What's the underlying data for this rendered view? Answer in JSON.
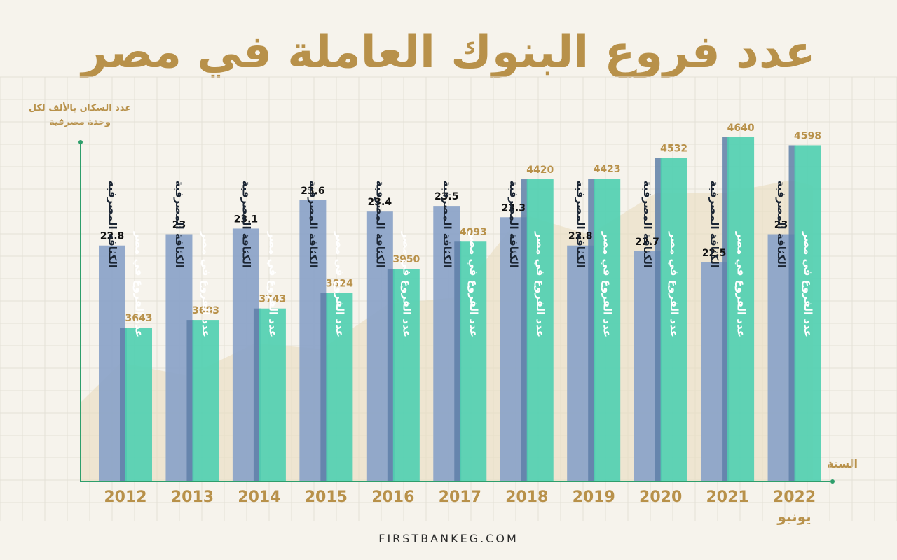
{
  "title": "عدد فروع البنوك العاملة في مصر",
  "footer": "FIRSTBANKEG.COM",
  "chart_data": {
    "type": "bar",
    "title": "عدد فروع البنوك العاملة في مصر",
    "xlabel": "السنة",
    "ylabel": "عدد السكان بالألف لكل وحدة مصرفية",
    "categories": [
      "2012",
      "2013",
      "2014",
      "2015",
      "2016",
      "2017",
      "2018",
      "2019",
      "2020",
      "2021",
      "2022 يونيو"
    ],
    "series": [
      {
        "name": "الكثافة المصرفية",
        "color": "#8aa3c8",
        "values": [
          22.8,
          23,
          23.1,
          23.6,
          23.4,
          23.5,
          23.3,
          22.8,
          22.7,
          22.5,
          23
        ]
      },
      {
        "name": "عدد الفروع في مصر",
        "color": "#4fcfb0",
        "values": [
          3643,
          3683,
          3743,
          3824,
          3950,
          4093,
          4420,
          4423,
          4532,
          4640,
          4598
        ]
      }
    ],
    "legend": "none",
    "grid": true,
    "colors": {
      "title": "#b8914a",
      "axis": "#2e9e6b",
      "density_label": "#111111",
      "branches_label": "#b8914a"
    }
  }
}
